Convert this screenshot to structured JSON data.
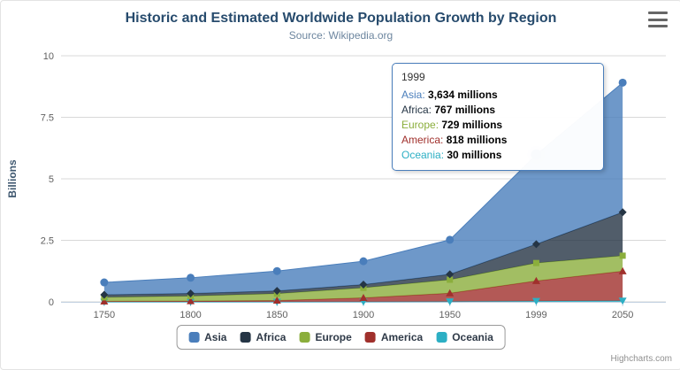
{
  "chart_data": {
    "type": "area",
    "stacking": "normal",
    "title": "Historic and Estimated Worldwide Population Growth by Region",
    "subtitle": "Source: Wikipedia.org",
    "xlabel": "",
    "ylabel": "Billions",
    "unit": "millions",
    "ylim": [
      0,
      10
    ],
    "y_ticks": [
      0,
      2.5,
      5,
      7.5,
      10
    ],
    "grid": true,
    "legend_position": "bottom",
    "stack_order": "first-series-on-top",
    "categories": [
      "1750",
      "1800",
      "1850",
      "1900",
      "1950",
      "1999",
      "2050"
    ],
    "series": [
      {
        "name": "Asia",
        "color": "#4a7ebb",
        "marker": "circle",
        "values": [
          502,
          635,
          809,
          947,
          1402,
          3634,
          5268
        ]
      },
      {
        "name": "Africa",
        "color": "#253545",
        "marker": "diamond",
        "values": [
          106,
          107,
          111,
          133,
          221,
          767,
          1766
        ]
      },
      {
        "name": "Europe",
        "color": "#8bae3c",
        "marker": "square",
        "values": [
          163,
          203,
          276,
          408,
          547,
          729,
          628
        ]
      },
      {
        "name": "America",
        "color": "#a0302c",
        "marker": "triangle",
        "values": [
          18,
          31,
          54,
          156,
          339,
          818,
          1201
        ]
      },
      {
        "name": "Oceania",
        "color": "#2cafc4",
        "marker": "triangle-down",
        "values": [
          2,
          2,
          2,
          6,
          13,
          30,
          46
        ]
      }
    ]
  },
  "tooltip": {
    "header": "1999",
    "category_index": 5,
    "highlight_series": "Asia",
    "rows": [
      {
        "name": "Asia",
        "value": "3,634 millions"
      },
      {
        "name": "Africa",
        "value": "767 millions"
      },
      {
        "name": "Europe",
        "value": "729 millions"
      },
      {
        "name": "America",
        "value": "818 millions"
      },
      {
        "name": "Oceania",
        "value": "30 millions"
      }
    ]
  },
  "credits": {
    "label": "Highcharts.com"
  }
}
